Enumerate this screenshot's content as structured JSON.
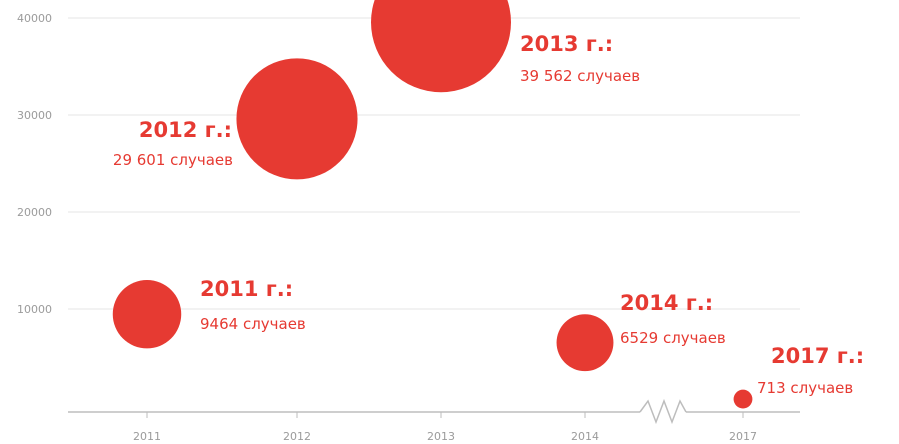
{
  "chart_data": {
    "type": "scatter",
    "variant": "bubble",
    "title": "",
    "xlabel": "",
    "ylabel": "",
    "x_categories": [
      "2011",
      "2012",
      "2013",
      "2014",
      "2017"
    ],
    "y_ticks": [
      10000,
      20000,
      30000,
      40000
    ],
    "ylim": [
      0,
      40000
    ],
    "grid": "horizontal",
    "axis_break": "between 2014 and 2017",
    "colors": {
      "bubble": "#e63a32",
      "label": "#e63a32",
      "axis": "#bdbdbd",
      "grid": "#e6e6e6",
      "tick": "#9b9b9b"
    },
    "points": [
      {
        "x": "2011",
        "y": 9464,
        "year_label": "2011 г.:",
        "count_label": "9464 случаев"
      },
      {
        "x": "2012",
        "y": 29601,
        "year_label": "2012 г.:",
        "count_label": "29 601 случаев"
      },
      {
        "x": "2013",
        "y": 39562,
        "year_label": "2013 г.:",
        "count_label": "39 562 случаев"
      },
      {
        "x": "2014",
        "y": 6529,
        "year_label": "2014 г.:",
        "count_label": "6529 случаев"
      },
      {
        "x": "2017",
        "y": 713,
        "year_label": "2017 г.:",
        "count_label": "713 случаев"
      }
    ]
  }
}
